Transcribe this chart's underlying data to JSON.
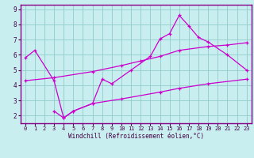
{
  "xlabel": "Windchill (Refroidissement éolien,°C)",
  "background_color": "#c8eef0",
  "grid_color": "#90cccc",
  "line_color": "#cc00cc",
  "xlim": [
    -0.5,
    23.5
  ],
  "ylim": [
    1.5,
    9.3
  ],
  "xticks": [
    0,
    1,
    2,
    3,
    4,
    5,
    6,
    7,
    8,
    9,
    10,
    11,
    12,
    13,
    14,
    15,
    16,
    17,
    18,
    19,
    20,
    21,
    22,
    23
  ],
  "yticks": [
    2,
    3,
    4,
    5,
    6,
    7,
    8,
    9
  ],
  "line1_x": [
    0,
    1,
    3,
    4,
    5,
    7,
    8,
    9,
    11,
    13,
    14,
    15,
    16,
    17,
    18,
    19,
    21,
    23
  ],
  "line1_y": [
    5.8,
    6.3,
    4.3,
    1.85,
    2.3,
    2.8,
    4.4,
    4.1,
    5.0,
    5.9,
    7.05,
    7.4,
    8.6,
    7.9,
    7.15,
    6.85,
    6.0,
    5.0
  ],
  "line2_x": [
    0,
    3,
    7,
    10,
    12,
    14,
    16,
    19,
    21,
    23
  ],
  "line2_y": [
    4.3,
    4.5,
    4.9,
    5.3,
    5.6,
    5.9,
    6.3,
    6.55,
    6.65,
    6.8
  ],
  "line3_x": [
    3,
    4,
    5,
    7,
    10,
    14,
    16,
    19,
    23
  ],
  "line3_y": [
    2.3,
    1.85,
    2.3,
    2.8,
    3.1,
    3.55,
    3.8,
    4.1,
    4.4
  ],
  "tick_fontsize": 5.0,
  "xlabel_fontsize": 5.5,
  "spine_color": "#880088",
  "tick_color": "#440044"
}
